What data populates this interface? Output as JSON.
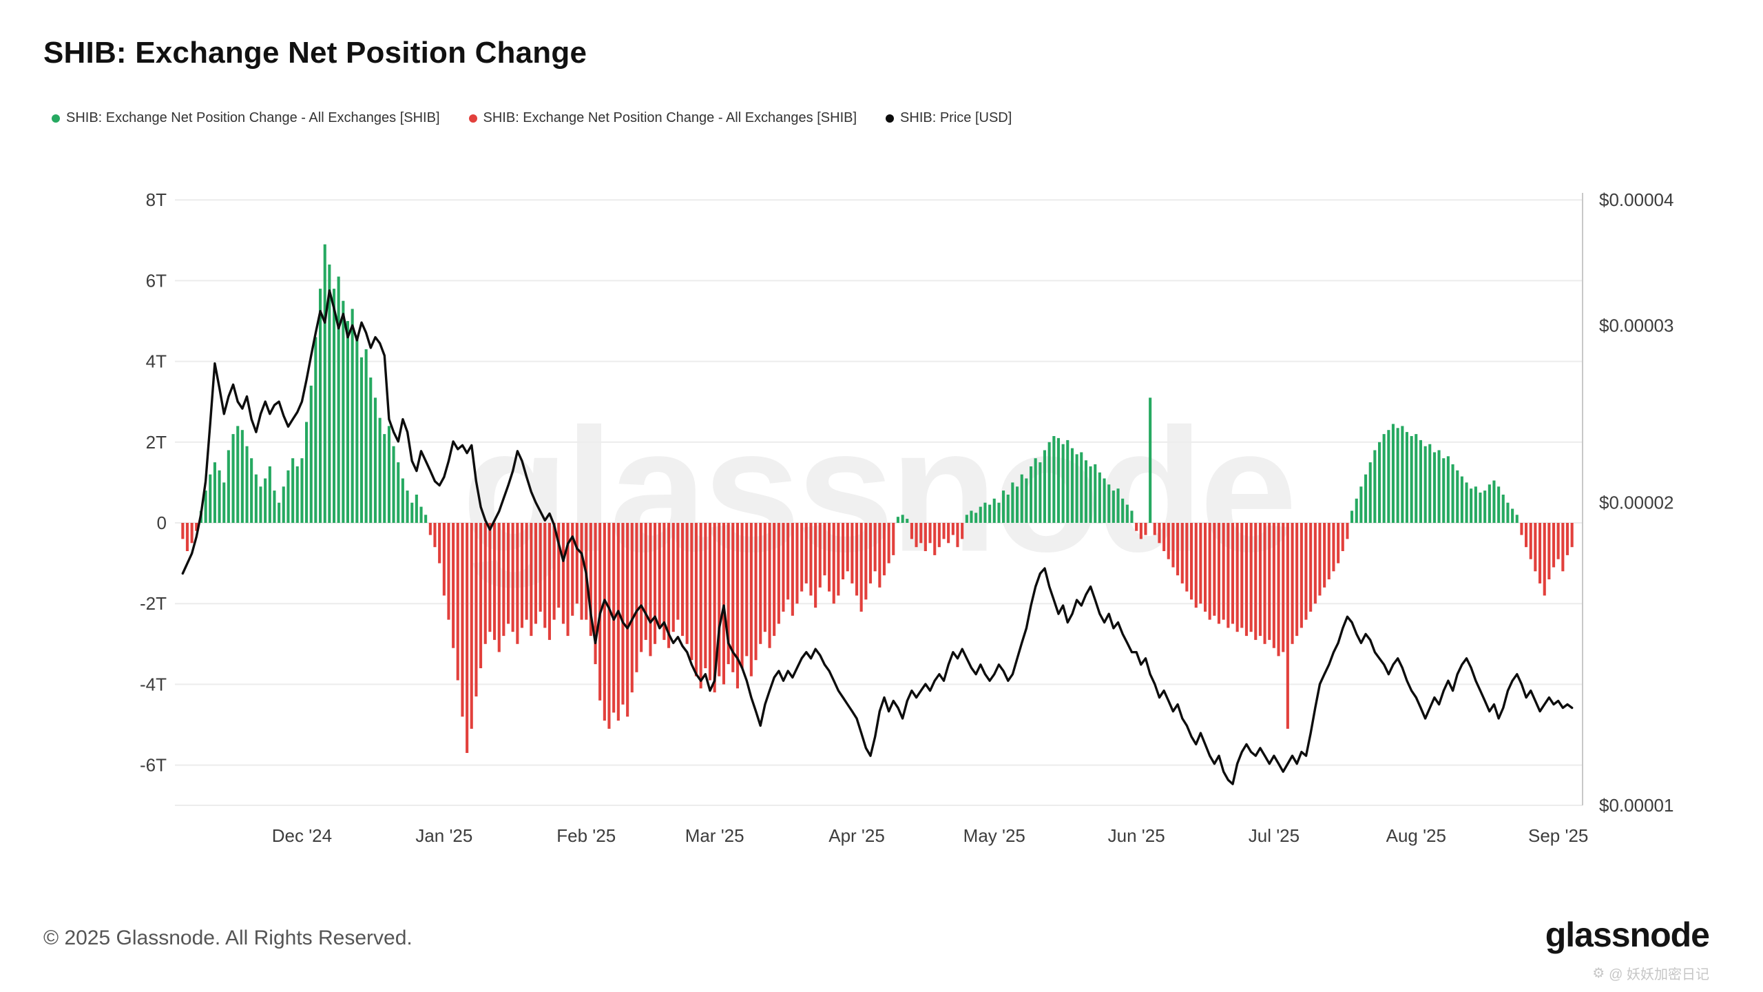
{
  "title": "SHIB: Exchange Net Position Change",
  "watermark": "glassnode",
  "legend": [
    {
      "label": "SHIB: Exchange Net Position Change - All Exchanges [SHIB]",
      "color": "#26a961"
    },
    {
      "label": "SHIB: Exchange Net Position Change - All Exchanges [SHIB]",
      "color": "#e2403c"
    },
    {
      "label": "SHIB: Price [USD]",
      "color": "#0d0d0d"
    }
  ],
  "footer": {
    "copyright": "© 2025 Glassnode. All Rights Reserved.",
    "logo": "glassnode",
    "credit_icon": "⚙",
    "credit": "@ 妖妖加密日记"
  },
  "colors": {
    "positive": "#26a961",
    "negative": "#e2403c",
    "price_line": "#0d0d0d",
    "gridline": "#ececec",
    "axis_line": "#c8c8c8"
  },
  "chart_data": {
    "type": "bar",
    "title": "SHIB: Exchange Net Position Change",
    "series": [
      {
        "name": "SHIB: Exchange Net Position Change - All Exchanges [SHIB]",
        "type": "bar",
        "unit": "trillion SHIB"
      },
      {
        "name": "SHIB: Price [USD]",
        "type": "line",
        "unit": "USD",
        "axis": "right",
        "scale": "log"
      }
    ],
    "start_date": "2024-11-05",
    "x_unit": "day",
    "ylim_left_T": [
      -7,
      8
    ],
    "ylim_right_usd": [
      1e-05,
      4e-05
    ],
    "price_scale_note": "price_usd_e5 values are USD x 1e-5",
    "left_axis": {
      "ticks": [
        {
          "label": "8T",
          "value": 8
        },
        {
          "label": "6T",
          "value": 6
        },
        {
          "label": "4T",
          "value": 4
        },
        {
          "label": "2T",
          "value": 2
        },
        {
          "label": "0",
          "value": 0
        },
        {
          "label": "-2T",
          "value": -2
        },
        {
          "label": "-4T",
          "value": -4
        },
        {
          "label": "-6T",
          "value": -6
        }
      ]
    },
    "right_axis": {
      "scale": "log",
      "ticks": [
        {
          "label": "$0.00004",
          "value": 4
        },
        {
          "label": "$0.00003",
          "value": 3
        },
        {
          "label": "$0.00002",
          "value": 2
        },
        {
          "label": "$0.00001",
          "value": 1
        }
      ]
    },
    "x_ticks": [
      {
        "label": "Dec '24",
        "day": 26
      },
      {
        "label": "Jan '25",
        "day": 57
      },
      {
        "label": "Feb '25",
        "day": 88
      },
      {
        "label": "Mar '25",
        "day": 116
      },
      {
        "label": "Apr '25",
        "day": 147
      },
      {
        "label": "May '25",
        "day": 177
      },
      {
        "label": "Jun '25",
        "day": 208
      },
      {
        "label": "Jul '25",
        "day": 238
      },
      {
        "label": "Aug '25",
        "day": 269
      },
      {
        "label": "Sep '25",
        "day": 300
      }
    ],
    "bars_T": [
      -0.4,
      -0.7,
      -0.5,
      -0.2,
      0.3,
      0.8,
      1.2,
      1.5,
      1.3,
      1.0,
      1.8,
      2.2,
      2.4,
      2.3,
      1.9,
      1.6,
      1.2,
      0.9,
      1.1,
      1.4,
      0.8,
      0.5,
      0.9,
      1.3,
      1.6,
      1.4,
      1.6,
      2.5,
      3.4,
      4.6,
      5.8,
      6.9,
      6.4,
      5.8,
      6.1,
      5.5,
      5.0,
      5.3,
      4.6,
      4.1,
      4.3,
      3.6,
      3.1,
      2.6,
      2.2,
      2.4,
      1.9,
      1.5,
      1.1,
      0.8,
      0.5,
      0.7,
      0.4,
      0.2,
      -0.3,
      -0.6,
      -1.0,
      -1.8,
      -2.4,
      -3.1,
      -3.9,
      -4.8,
      -5.7,
      -5.1,
      -4.3,
      -3.6,
      -3.0,
      -2.7,
      -2.9,
      -3.2,
      -2.8,
      -2.5,
      -2.7,
      -3.0,
      -2.6,
      -2.4,
      -2.8,
      -2.5,
      -2.2,
      -2.6,
      -2.9,
      -2.4,
      -2.1,
      -2.5,
      -2.8,
      -2.3,
      -2.0,
      -2.4,
      -2.4,
      -2.8,
      -3.5,
      -4.4,
      -4.9,
      -5.1,
      -4.7,
      -4.9,
      -4.5,
      -4.8,
      -4.2,
      -3.7,
      -3.2,
      -2.9,
      -3.3,
      -3.0,
      -2.6,
      -2.9,
      -3.1,
      -2.7,
      -2.4,
      -2.8,
      -3.0,
      -3.4,
      -3.8,
      -4.1,
      -3.6,
      -3.9,
      -4.2,
      -3.8,
      -4.0,
      -3.5,
      -3.7,
      -4.1,
      -3.6,
      -3.3,
      -3.8,
      -3.4,
      -3.0,
      -2.7,
      -3.1,
      -2.8,
      -2.5,
      -2.2,
      -1.9,
      -2.3,
      -2.0,
      -1.7,
      -1.5,
      -1.8,
      -2.1,
      -1.6,
      -1.3,
      -1.7,
      -2.0,
      -1.8,
      -1.4,
      -1.2,
      -1.5,
      -1.8,
      -2.2,
      -1.9,
      -1.5,
      -1.2,
      -1.6,
      -1.3,
      -1.0,
      -0.8,
      0.15,
      0.2,
      0.1,
      -0.4,
      -0.6,
      -0.5,
      -0.7,
      -0.5,
      -0.8,
      -0.6,
      -0.4,
      -0.5,
      -0.3,
      -0.6,
      -0.4,
      0.2,
      0.3,
      0.25,
      0.4,
      0.5,
      0.45,
      0.6,
      0.5,
      0.8,
      0.7,
      1.0,
      0.9,
      1.2,
      1.1,
      1.4,
      1.6,
      1.5,
      1.8,
      2.0,
      2.15,
      2.1,
      1.95,
      2.05,
      1.85,
      1.7,
      1.75,
      1.55,
      1.4,
      1.45,
      1.25,
      1.1,
      0.95,
      0.8,
      0.85,
      0.6,
      0.45,
      0.3,
      -0.2,
      -0.4,
      -0.3,
      3.1,
      -0.3,
      -0.5,
      -0.7,
      -0.9,
      -1.1,
      -1.3,
      -1.5,
      -1.7,
      -1.9,
      -2.1,
      -2.0,
      -2.2,
      -2.4,
      -2.3,
      -2.5,
      -2.4,
      -2.6,
      -2.5,
      -2.7,
      -2.6,
      -2.8,
      -2.7,
      -2.9,
      -2.8,
      -3.0,
      -2.9,
      -3.1,
      -3.3,
      -3.2,
      -5.1,
      -3.0,
      -2.8,
      -2.6,
      -2.4,
      -2.2,
      -2.0,
      -1.8,
      -1.6,
      -1.4,
      -1.2,
      -1.0,
      -0.7,
      -0.4,
      0.3,
      0.6,
      0.9,
      1.2,
      1.5,
      1.8,
      2.0,
      2.2,
      2.3,
      2.45,
      2.35,
      2.4,
      2.25,
      2.15,
      2.2,
      2.05,
      1.9,
      1.95,
      1.75,
      1.8,
      1.6,
      1.65,
      1.45,
      1.3,
      1.15,
      1.0,
      0.85,
      0.9,
      0.75,
      0.8,
      0.95,
      1.05,
      0.9,
      0.7,
      0.5,
      0.35,
      0.2,
      -0.3,
      -0.6,
      -0.9,
      -1.2,
      -1.5,
      -1.8,
      -1.4,
      -1.1,
      -0.9,
      -1.2,
      -0.8,
      -0.6
    ],
    "price_usd_e5": [
      1.7,
      1.74,
      1.78,
      1.85,
      1.95,
      2.1,
      2.4,
      2.75,
      2.6,
      2.45,
      2.55,
      2.62,
      2.52,
      2.48,
      2.55,
      2.42,
      2.35,
      2.45,
      2.52,
      2.45,
      2.5,
      2.52,
      2.44,
      2.38,
      2.42,
      2.46,
      2.52,
      2.65,
      2.8,
      2.95,
      3.1,
      3.02,
      3.25,
      3.12,
      2.98,
      3.08,
      2.92,
      3.0,
      2.9,
      3.02,
      2.95,
      2.85,
      2.92,
      2.88,
      2.8,
      2.42,
      2.35,
      2.3,
      2.42,
      2.35,
      2.2,
      2.15,
      2.25,
      2.2,
      2.15,
      2.1,
      2.08,
      2.12,
      2.2,
      2.3,
      2.26,
      2.28,
      2.24,
      2.28,
      2.1,
      1.98,
      1.92,
      1.88,
      1.92,
      1.96,
      2.02,
      2.08,
      2.15,
      2.25,
      2.2,
      2.12,
      2.05,
      2.0,
      1.96,
      1.92,
      1.95,
      1.9,
      1.82,
      1.75,
      1.82,
      1.85,
      1.8,
      1.78,
      1.7,
      1.55,
      1.45,
      1.55,
      1.6,
      1.57,
      1.53,
      1.56,
      1.52,
      1.5,
      1.53,
      1.56,
      1.58,
      1.55,
      1.52,
      1.54,
      1.5,
      1.52,
      1.48,
      1.45,
      1.47,
      1.44,
      1.42,
      1.38,
      1.35,
      1.33,
      1.35,
      1.3,
      1.33,
      1.5,
      1.58,
      1.45,
      1.42,
      1.4,
      1.37,
      1.33,
      1.28,
      1.24,
      1.2,
      1.26,
      1.3,
      1.34,
      1.36,
      1.33,
      1.36,
      1.34,
      1.37,
      1.4,
      1.42,
      1.4,
      1.43,
      1.41,
      1.38,
      1.36,
      1.33,
      1.3,
      1.28,
      1.26,
      1.24,
      1.22,
      1.18,
      1.14,
      1.12,
      1.17,
      1.24,
      1.28,
      1.24,
      1.27,
      1.25,
      1.22,
      1.27,
      1.3,
      1.28,
      1.3,
      1.32,
      1.3,
      1.33,
      1.35,
      1.33,
      1.38,
      1.42,
      1.4,
      1.43,
      1.4,
      1.37,
      1.35,
      1.38,
      1.35,
      1.33,
      1.35,
      1.38,
      1.36,
      1.33,
      1.35,
      1.4,
      1.45,
      1.5,
      1.58,
      1.65,
      1.7,
      1.72,
      1.65,
      1.6,
      1.55,
      1.58,
      1.52,
      1.55,
      1.6,
      1.58,
      1.62,
      1.65,
      1.6,
      1.55,
      1.52,
      1.55,
      1.5,
      1.52,
      1.48,
      1.45,
      1.42,
      1.42,
      1.38,
      1.4,
      1.35,
      1.32,
      1.28,
      1.3,
      1.27,
      1.24,
      1.26,
      1.22,
      1.2,
      1.17,
      1.15,
      1.18,
      1.15,
      1.12,
      1.1,
      1.12,
      1.08,
      1.06,
      1.05,
      1.1,
      1.13,
      1.15,
      1.13,
      1.12,
      1.14,
      1.12,
      1.1,
      1.12,
      1.1,
      1.08,
      1.1,
      1.12,
      1.1,
      1.13,
      1.12,
      1.18,
      1.25,
      1.32,
      1.35,
      1.38,
      1.42,
      1.45,
      1.5,
      1.54,
      1.52,
      1.48,
      1.45,
      1.48,
      1.46,
      1.42,
      1.4,
      1.38,
      1.35,
      1.38,
      1.4,
      1.37,
      1.33,
      1.3,
      1.28,
      1.25,
      1.22,
      1.25,
      1.28,
      1.26,
      1.3,
      1.33,
      1.3,
      1.35,
      1.38,
      1.4,
      1.37,
      1.33,
      1.3,
      1.27,
      1.24,
      1.26,
      1.22,
      1.25,
      1.3,
      1.33,
      1.35,
      1.32,
      1.28,
      1.3,
      1.27,
      1.24,
      1.26,
      1.28,
      1.26,
      1.27,
      1.25,
      1.26,
      1.25
    ]
  }
}
